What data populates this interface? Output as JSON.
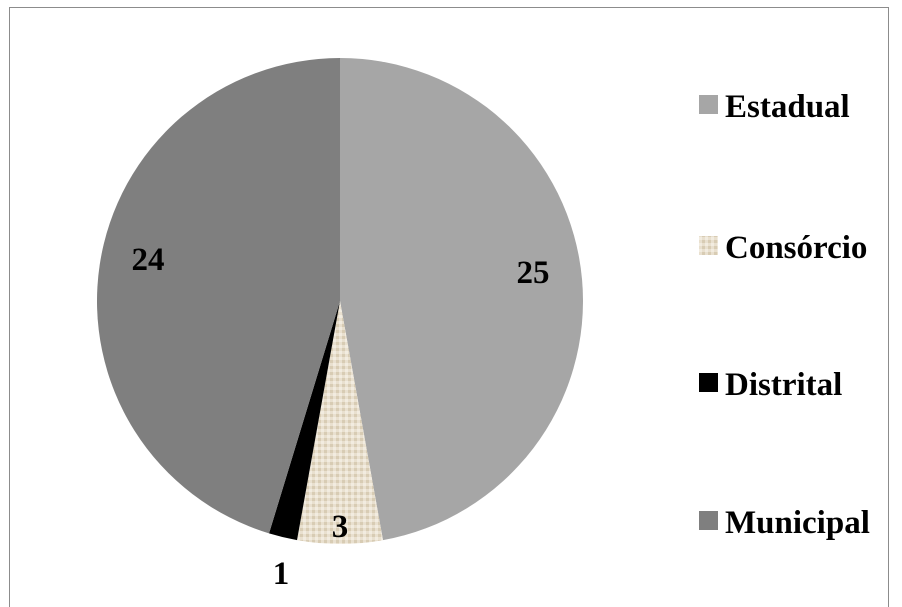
{
  "chart_data": {
    "type": "pie",
    "categories": [
      "Estadual",
      "Consórcio",
      "Distrital",
      "Municipal"
    ],
    "values": [
      25,
      3,
      1,
      24
    ],
    "colors": [
      "#a6a6a6",
      "#e6dccb",
      "#000000",
      "#7f7f7f"
    ],
    "legend_position": "right"
  }
}
